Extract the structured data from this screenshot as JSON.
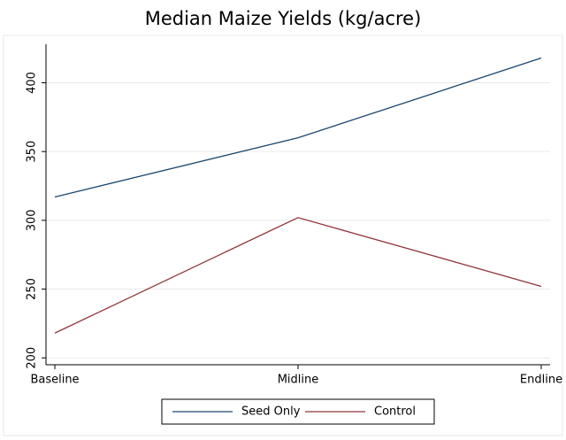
{
  "chart_data": {
    "type": "line",
    "title": "Median Maize Yields (kg/acre)",
    "categories": [
      "Baseline",
      "Midline",
      "Endline"
    ],
    "series": [
      {
        "name": "Seed Only",
        "color": "#1a476f",
        "values": [
          317,
          360,
          418
        ]
      },
      {
        "name": "Control",
        "color": "#90353b",
        "values": [
          218,
          302,
          252
        ]
      }
    ],
    "ylim": [
      195,
      428
    ],
    "yticks": [
      200,
      250,
      300,
      350,
      400
    ],
    "grid": true,
    "legend": "bottom"
  }
}
